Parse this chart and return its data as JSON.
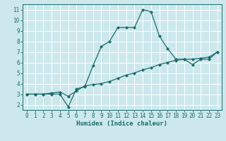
{
  "title": "",
  "xlabel": "Humidex (Indice chaleur)",
  "bg_color": "#cce8ec",
  "line_color": "#1a6b6b",
  "xlim": [
    -0.5,
    23.5
  ],
  "ylim": [
    1.5,
    11.5
  ],
  "xticks": [
    0,
    1,
    2,
    3,
    4,
    5,
    6,
    7,
    8,
    9,
    10,
    11,
    12,
    13,
    14,
    15,
    16,
    17,
    18,
    19,
    20,
    21,
    22,
    23
  ],
  "yticks": [
    2,
    3,
    4,
    5,
    6,
    7,
    8,
    9,
    10,
    11
  ],
  "line1_x": [
    0,
    1,
    2,
    3,
    4,
    5,
    6,
    7,
    8,
    9,
    10,
    11,
    12,
    13,
    14,
    15,
    16,
    17,
    18,
    19,
    20,
    21,
    22,
    23
  ],
  "line1_y": [
    3.0,
    3.0,
    3.0,
    3.0,
    3.0,
    1.8,
    3.5,
    3.7,
    5.7,
    7.5,
    8.0,
    9.3,
    9.3,
    9.3,
    11.0,
    10.8,
    8.5,
    7.3,
    6.3,
    6.3,
    5.8,
    6.3,
    6.3,
    7.0
  ],
  "line2_x": [
    0,
    1,
    2,
    3,
    4,
    5,
    6,
    7,
    8,
    9,
    10,
    11,
    12,
    13,
    14,
    15,
    16,
    17,
    18,
    19,
    20,
    21,
    22,
    23
  ],
  "line2_y": [
    3.0,
    3.0,
    3.0,
    3.1,
    3.2,
    2.8,
    3.3,
    3.8,
    3.9,
    4.0,
    4.2,
    4.5,
    4.8,
    5.0,
    5.3,
    5.5,
    5.8,
    6.0,
    6.2,
    6.3,
    6.3,
    6.4,
    6.5,
    7.0
  ],
  "tick_fontsize": 5.5,
  "xlabel_fontsize": 6.5,
  "marker_size": 2.5,
  "line_width": 0.9
}
